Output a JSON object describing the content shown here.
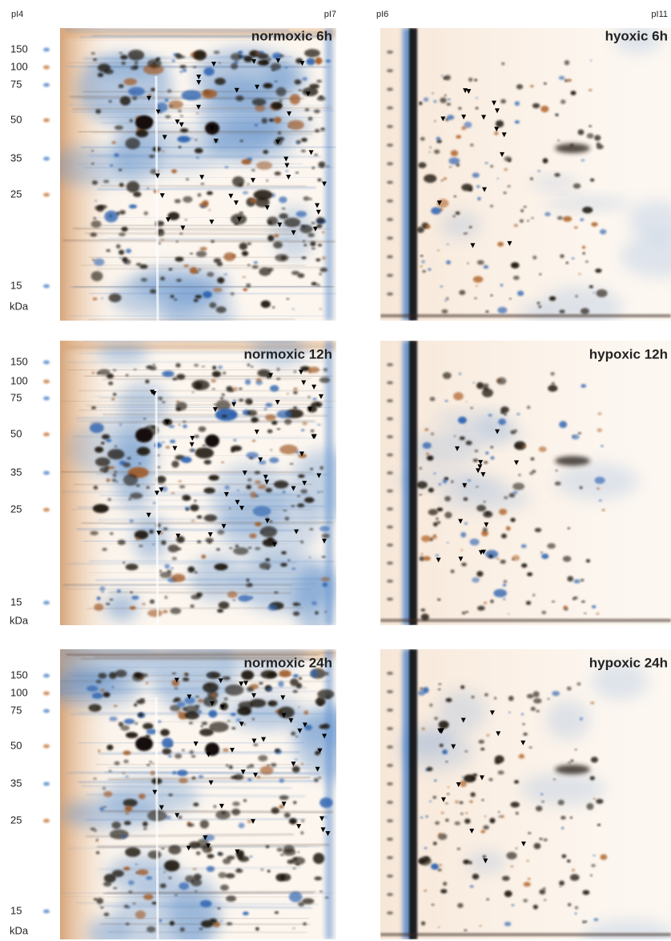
{
  "ph_labels": {
    "left": [
      "pI4",
      "pI7"
    ],
    "right": [
      "pI6",
      "pI11"
    ]
  },
  "rows": [
    {
      "left_title": "normoxic 6h",
      "right_title": "hyoxic 6h",
      "markers": [
        150,
        100,
        75,
        50,
        35,
        25,
        15
      ],
      "unit": "kDa"
    },
    {
      "left_title": "normoxic 12h",
      "right_title": "hypoxic 12h",
      "markers": [
        150,
        100,
        75,
        50,
        35,
        25,
        15
      ],
      "unit": "kDa"
    },
    {
      "left_title": "normoxic 24h",
      "right_title": "hypoxic 24h",
      "markers": [
        150,
        100,
        75,
        50,
        35,
        25,
        15
      ],
      "unit": "kDa"
    }
  ]
}
